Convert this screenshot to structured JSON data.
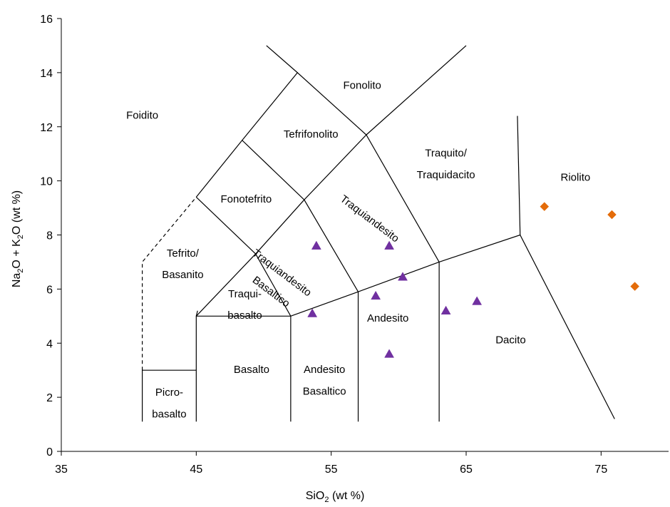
{
  "chart_data": {
    "type": "scatter",
    "title": "",
    "xlabel": {
      "main": "SiO",
      "sub": "2",
      "tail": " (wt %)"
    },
    "ylabel": {
      "a": "Na",
      "a_sub": "2",
      "b": "O + K",
      "b_sub": "2",
      "c": "O  (wt %)"
    },
    "xlim": [
      35,
      80
    ],
    "ylim": [
      0,
      16
    ],
    "x_ticks": [
      35,
      45,
      55,
      65,
      75
    ],
    "y_ticks": [
      0,
      2,
      4,
      6,
      8,
      10,
      12,
      14,
      16
    ],
    "grid": false,
    "legend": "none",
    "series": [
      {
        "marker": "triangle",
        "color": "#7030A0",
        "x": [
          53.9,
          59.3,
          53.6,
          60.3,
          58.3,
          59.3,
          63.5,
          65.8
        ],
        "y": [
          7.6,
          7.6,
          5.1,
          6.45,
          5.75,
          3.6,
          5.2,
          5.55
        ]
      },
      {
        "marker": "diamond",
        "color": "#E46C0A",
        "x": [
          70.8,
          75.8,
          77.5
        ],
        "y": [
          9.05,
          8.75,
          6.1
        ]
      }
    ],
    "field_labels": [
      {
        "text": "Foidito",
        "x": 41.0,
        "y": 12.3,
        "rot": 0
      },
      {
        "text": "Fonolito",
        "x": 57.3,
        "y": 13.4,
        "rot": 0
      },
      {
        "text": "Tefrifonolito",
        "x": 53.5,
        "y": 11.6,
        "rot": 0
      },
      {
        "text": "Traquito/",
        "x": 63.5,
        "y": 10.9,
        "rot": 0
      },
      {
        "text": "Traquidacito",
        "x": 63.5,
        "y": 10.1,
        "rot": 0
      },
      {
        "text": "Riolito",
        "x": 73.1,
        "y": 10.0,
        "rot": 0
      },
      {
        "text": "Fonotefrito",
        "x": 48.7,
        "y": 9.2,
        "rot": 0
      },
      {
        "text": "Traquiandesito",
        "x": 57.7,
        "y": 8.5,
        "rot": 37
      },
      {
        "text": "Tefrito/",
        "x": 44.0,
        "y": 7.2,
        "rot": 0
      },
      {
        "text": "Basanito",
        "x": 44.0,
        "y": 6.4,
        "rot": 0
      },
      {
        "text": "Traquiandesito",
        "x": 51.2,
        "y": 6.5,
        "rot": 37
      },
      {
        "text": "Basaltico",
        "x": 50.4,
        "y": 5.8,
        "rot": 37
      },
      {
        "text": "Traqui-",
        "x": 48.6,
        "y": 5.7,
        "rot": 0
      },
      {
        "text": "basalto",
        "x": 48.6,
        "y": 4.9,
        "rot": 0
      },
      {
        "text": "Andesito",
        "x": 59.2,
        "y": 4.8,
        "rot": 0
      },
      {
        "text": "Dacito",
        "x": 68.3,
        "y": 4.0,
        "rot": 0
      },
      {
        "text": "Basalto",
        "x": 49.1,
        "y": 2.9,
        "rot": 0
      },
      {
        "text": "Andesito",
        "x": 54.5,
        "y": 2.9,
        "rot": 0
      },
      {
        "text": "Basaltico",
        "x": 54.5,
        "y": 2.1,
        "rot": 0
      },
      {
        "text": "Picro-",
        "x": 43.0,
        "y": 2.05,
        "rot": 0
      },
      {
        "text": "basalto",
        "x": 43.0,
        "y": 1.25,
        "rot": 0
      }
    ],
    "boundaries": [
      [
        [
          41,
          1.1
        ],
        [
          41,
          3
        ],
        [
          45,
          3
        ],
        [
          45,
          1.1
        ]
      ],
      [
        [
          45,
          3
        ],
        [
          45,
          5
        ],
        [
          52,
          5
        ],
        [
          52,
          1.1
        ]
      ],
      [
        [
          52,
          5
        ],
        [
          57,
          5.9
        ],
        [
          63,
          7
        ],
        [
          69,
          8
        ],
        [
          76,
          1.2
        ]
      ],
      [
        [
          57,
          1.1
        ],
        [
          57,
          5.9
        ]
      ],
      [
        [
          63,
          1.1
        ],
        [
          63,
          7
        ]
      ],
      [
        [
          69,
          8
        ],
        [
          68.8,
          12.4
        ]
      ],
      [
        [
          45,
          5
        ],
        [
          49.4,
          7.3
        ],
        [
          52,
          5
        ]
      ],
      [
        [
          49.4,
          7.3
        ],
        [
          53,
          9.3
        ],
        [
          57,
          5.9
        ]
      ],
      [
        [
          45,
          5
        ],
        [
          45.1,
          5.2
        ]
      ],
      [
        [
          45.1,
          5.2
        ],
        [
          45.1,
          5.2
        ]
      ],
      [
        [
          45,
          9.4
        ],
        [
          49.4,
          7.3
        ]
      ],
      [
        [
          45,
          9.4
        ],
        [
          48.4,
          11.5
        ],
        [
          53,
          9.3
        ],
        [
          57.6,
          11.7
        ],
        [
          63,
          7
        ]
      ],
      [
        [
          48.4,
          11.5
        ],
        [
          52.5,
          14
        ],
        [
          57.6,
          11.7
        ]
      ],
      [
        [
          57.6,
          11.7
        ],
        [
          65,
          15
        ]
      ],
      [
        [
          52.5,
          14
        ],
        [
          50.2,
          15
        ]
      ]
    ],
    "dashed_boundaries": [
      [
        [
          41,
          3
        ],
        [
          41,
          7
        ],
        [
          45,
          9.4
        ]
      ]
    ]
  }
}
